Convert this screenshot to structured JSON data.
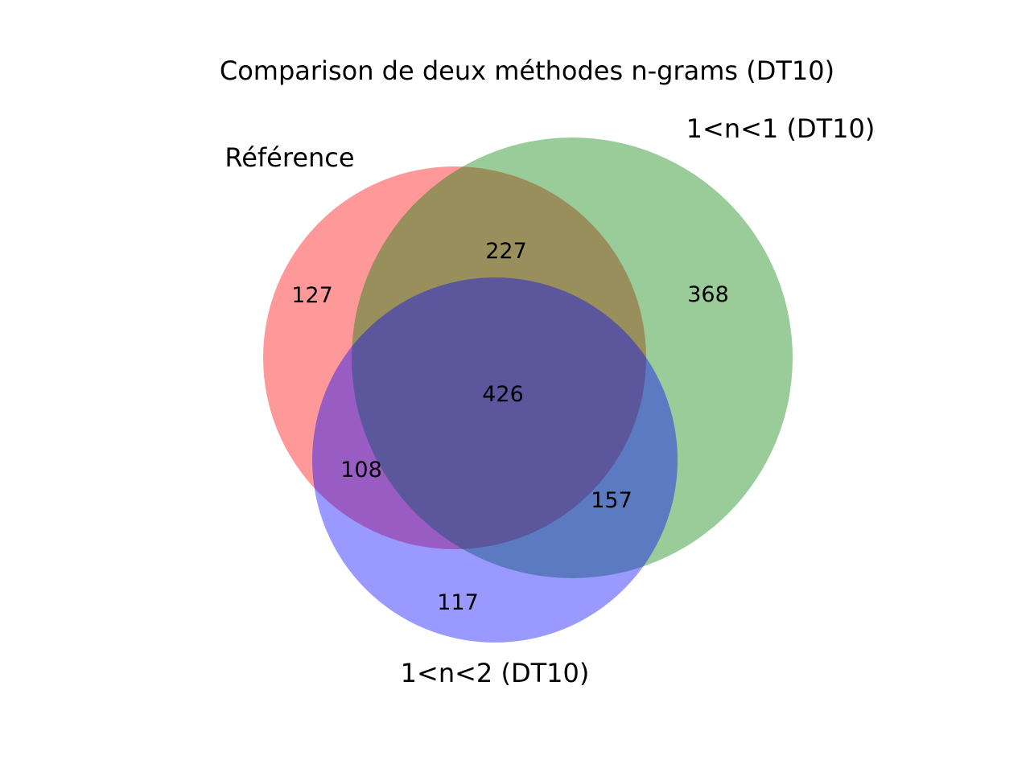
{
  "title": "Comparison de deux méthodes n-grams (DT10)",
  "sets": {
    "a": {
      "label": "Référence",
      "color": "#ff0000"
    },
    "b": {
      "label": "1<n<1 (DT10)",
      "color": "#008000"
    },
    "c": {
      "label": "1<n<2 (DT10)",
      "color": "#0000ff"
    }
  },
  "regions": {
    "a_only": "127",
    "b_only": "368",
    "c_only": "117",
    "ab_only": "227",
    "ac_only": "108",
    "bc_only": "157",
    "abc": "426"
  },
  "circle_opacity": 0.4
}
